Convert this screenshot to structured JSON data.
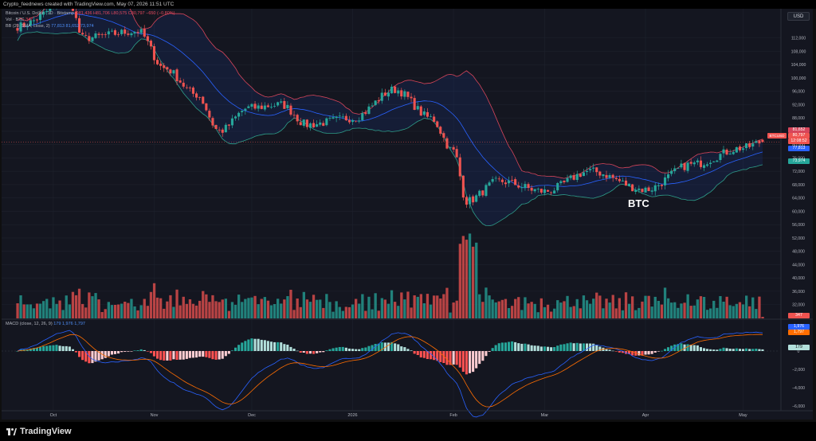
{
  "header": {
    "caption": "Crypto_feednews created with TradingView.com, May 07, 2026 11:51 UTC"
  },
  "currency_button": "USD",
  "legend": {
    "symbol_line": "Bitcoin / U.S. Dollar · 1D · Bitstamp",
    "ohlc": "O81,436 H81,706 L80,575 C80,797 −650 (−0.80%)",
    "volume_line": "Vol · BTC",
    "volume_value": "347",
    "bb_line": "BB (20, SMA, close, 2)",
    "bb_values": "77,813 81,652 73,974",
    "macd_line": "MACD (close, 12, 26, 9)",
    "macd_values": "179  1,976  1,797"
  },
  "symbol_label": "BTCUSD",
  "annotation": "BTC",
  "price_axis": {
    "ticks": [
      "112,000",
      "108,000",
      "104,000",
      "100,000",
      "96,000",
      "92,000",
      "88,000",
      "84,000",
      "80,000",
      "76,000",
      "72,000",
      "68,000",
      "64,000",
      "60,000",
      "56,000",
      "52,000",
      "48,000",
      "44,000",
      "40,000",
      "36,000",
      "32,000"
    ]
  },
  "macd_axis": {
    "ticks": [
      "2,000",
      "0",
      "−2,000",
      "−4,000",
      "−6,000"
    ]
  },
  "price_tags": {
    "upper_band": "81,652",
    "last_price": "80,797",
    "countdown": "12:08:52",
    "basis": "77,813",
    "lower_band": "73,974",
    "volume": "347",
    "macd_line": "1,976",
    "signal_line": "1,797",
    "histogram": "179"
  },
  "time_axis": {
    "labels": [
      "Oct",
      "Nov",
      "Dec",
      "2026",
      "Feb",
      "Mar",
      "Apr",
      "May"
    ]
  },
  "brand": "TradingView",
  "colors": {
    "up": "#26a69a",
    "down": "#ef5350",
    "upper_band": "#d6455a",
    "basis": "#2962ff",
    "lower_band": "#2e9e8a",
    "macd": "#2962ff",
    "signal": "#ff6d00"
  },
  "chart_data": [
    {
      "type": "candlestick",
      "title": "Bitcoin / U.S. Dollar · 1D · Bitstamp",
      "ylim": [
        30000,
        116000
      ],
      "x_labels": [
        "Oct",
        "Nov",
        "Dec",
        "2026",
        "Feb",
        "Mar",
        "Apr",
        "May"
      ],
      "close_path": [
        {
          "x": "Sep 20",
          "close": 115500
        },
        {
          "x": "Oct 6",
          "close": 123000
        },
        {
          "x": "Oct 10",
          "close": 112000
        },
        {
          "x": "Oct 27",
          "close": 114000
        },
        {
          "x": "Nov 4",
          "close": 103000
        },
        {
          "x": "Nov 14",
          "close": 95000
        },
        {
          "x": "Nov 21",
          "close": 84000
        },
        {
          "x": "Nov 30",
          "close": 91000
        },
        {
          "x": "Dec 10",
          "close": 92000
        },
        {
          "x": "Dec 18",
          "close": 86000
        },
        {
          "x": "Jan 1",
          "close": 88000
        },
        {
          "x": "Jan 14",
          "close": 96500
        },
        {
          "x": "Jan 25",
          "close": 88000
        },
        {
          "x": "Feb 1",
          "close": 78000
        },
        {
          "x": "Feb 5",
          "close": 63000
        },
        {
          "x": "Feb 15",
          "close": 69000
        },
        {
          "x": "Mar 1",
          "close": 66000
        },
        {
          "x": "Mar 15",
          "close": 72000
        },
        {
          "x": "Apr 1",
          "close": 66500
        },
        {
          "x": "Apr 15",
          "close": 74000
        },
        {
          "x": "May 1",
          "close": 79000
        },
        {
          "x": "May 7",
          "close": 80797
        }
      ],
      "last": {
        "open": 81436,
        "high": 81706,
        "low": 80575,
        "close": 80797,
        "change": -650,
        "change_pct": -0.8
      },
      "bollinger": {
        "length": 20,
        "basis": 77813,
        "upper": 81652,
        "lower": 73974
      }
    },
    {
      "type": "bar",
      "title": "Vol · BTC",
      "last_volume": 347
    },
    {
      "type": "line",
      "title": "MACD (close, 12, 26, 9)",
      "ylim": [
        -6500,
        2600
      ],
      "series": [
        {
          "name": "MACD",
          "last": 1976
        },
        {
          "name": "Signal",
          "last": 1797
        },
        {
          "name": "Histogram",
          "last": 179
        }
      ]
    }
  ]
}
